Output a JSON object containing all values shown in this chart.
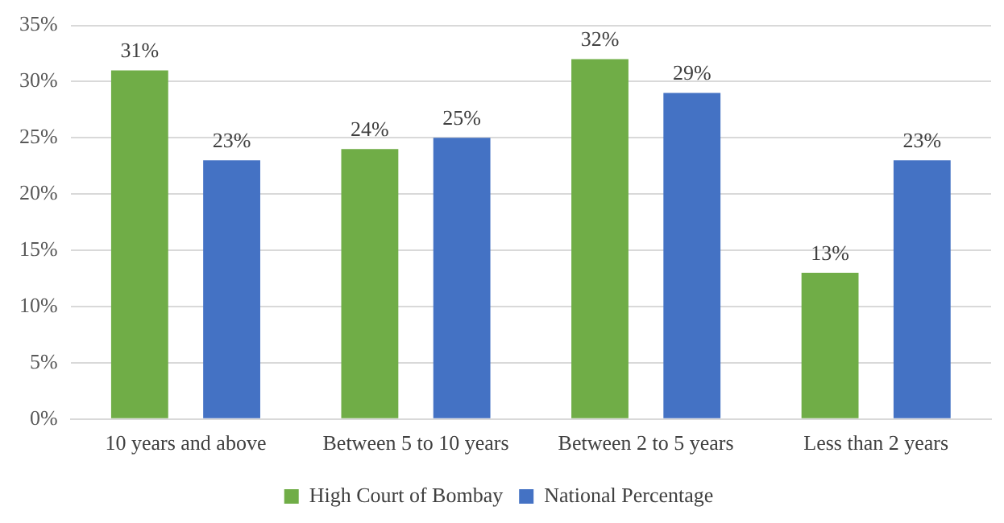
{
  "chart_data": {
    "type": "bar",
    "categories": [
      "10 years and above",
      "Between 5 to 10 years",
      "Between 2 to 5 years",
      "Less than 2 years"
    ],
    "series": [
      {
        "name": "High Court of Bombay",
        "color": "#70ad47",
        "values": [
          31,
          24,
          32,
          13
        ],
        "value_labels": [
          "31%",
          "24%",
          "32%",
          "13%"
        ]
      },
      {
        "name": "National Percentage",
        "color": "#4472c4",
        "values": [
          23,
          25,
          29,
          23
        ],
        "value_labels": [
          "23%",
          "25%",
          "29%",
          "23%"
        ]
      }
    ],
    "ylim": [
      0,
      35
    ],
    "yticks": [
      {
        "value": 0,
        "label": "0%"
      },
      {
        "value": 5,
        "label": "5%"
      },
      {
        "value": 10,
        "label": "10%"
      },
      {
        "value": 15,
        "label": "15%"
      },
      {
        "value": 20,
        "label": "20%"
      },
      {
        "value": 25,
        "label": "25%"
      },
      {
        "value": 30,
        "label": "30%"
      },
      {
        "value": 35,
        "label": "35%"
      }
    ],
    "grid": "y",
    "legend": "bottom"
  }
}
